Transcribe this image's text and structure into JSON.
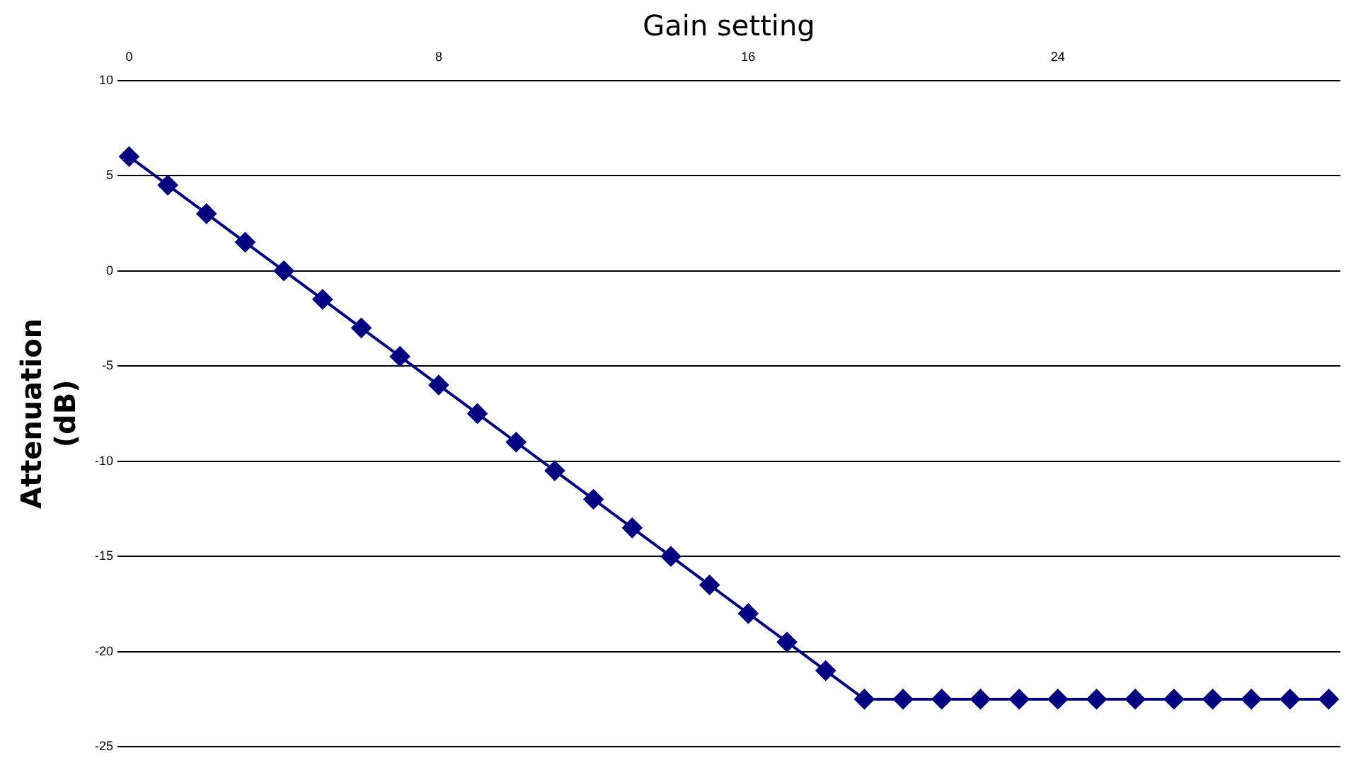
{
  "chart_data": {
    "type": "line",
    "xlabel": "Gain setting",
    "ylabel": "Attenuation\n(dB)",
    "x": [
      0,
      1,
      2,
      3,
      4,
      5,
      6,
      7,
      8,
      9,
      10,
      11,
      12,
      13,
      14,
      15,
      16,
      17,
      18,
      19,
      20,
      21,
      22,
      23,
      24,
      25,
      26,
      27,
      28,
      29,
      30,
      31
    ],
    "series": [
      {
        "color": "#000080",
        "values": [
          6,
          4.5,
          3,
          1.5,
          0,
          -1.5,
          -3,
          -4.5,
          -6,
          -7.5,
          -9,
          -10.5,
          -12,
          -13.5,
          -15,
          -16.5,
          -18,
          -19.5,
          -21,
          -22.5,
          -22.5,
          -22.5,
          -22.5,
          -22.5,
          -22.5,
          -22.5,
          -22.5,
          -22.5,
          -22.5,
          -22.5,
          -22.5,
          -22.5
        ]
      }
    ],
    "xlim": [
      -0.3,
      31.3
    ],
    "xticks": [
      0,
      8,
      16,
      24
    ],
    "ylim": [
      -25,
      10
    ],
    "yticks": [
      10,
      5,
      0,
      -5,
      -10,
      -15,
      -20,
      -25
    ],
    "grid": "y",
    "legend": false,
    "marker": "diamond",
    "line_style": "solid"
  }
}
